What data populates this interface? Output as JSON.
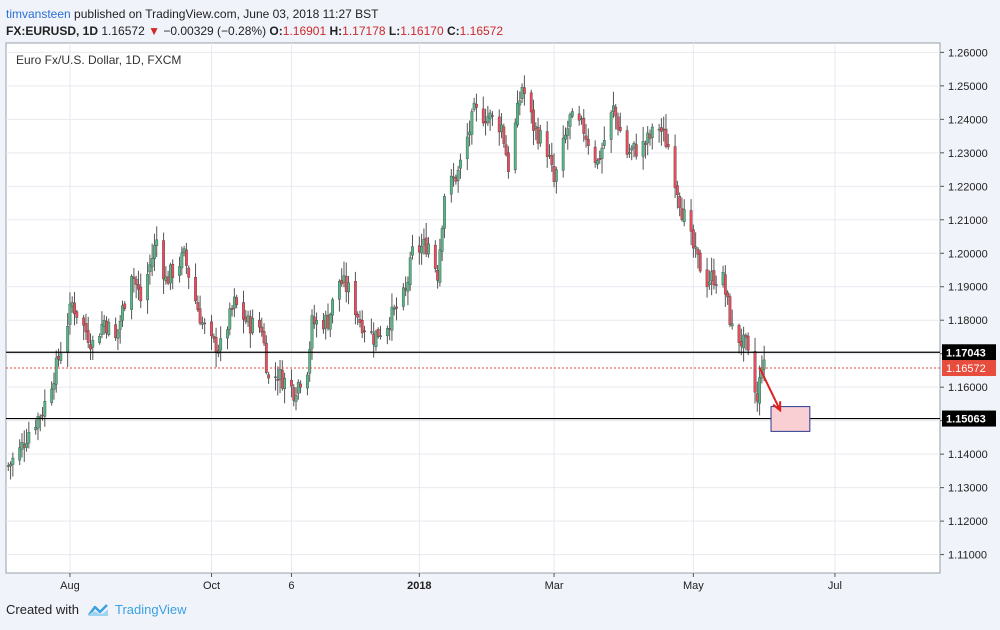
{
  "header": {
    "author": "timvansteen",
    "published_text": "published on TradingView.com, June 03, 2018 11:27 BST"
  },
  "symbol_line": {
    "symbol": "FX:EURUSD, 1D",
    "last": "1.16572",
    "change": "−0.00329 (−0.28%)",
    "o_label": "O:",
    "o_value": "1.16901",
    "h_label": "H:",
    "h_value": "1.17178",
    "l_label": "L:",
    "l_value": "1.16170",
    "c_label": "C:",
    "c_value": "1.16572",
    "down_arrow": "▼"
  },
  "footer": {
    "created_with": "Created with",
    "brand": "TradingView"
  },
  "colors": {
    "up": "#53b987",
    "down": "#eb4d5c",
    "wick": "#555555",
    "grid": "#e6e9ef",
    "hline": "#000000",
    "last_price": "#e74c3c",
    "target_box_fill": "#f9cfd4",
    "target_box_stroke": "#2a3a8f",
    "arrow": "#e02020"
  },
  "chart_data": {
    "type": "candlestick",
    "title": "Euro Fx/U.S. Dollar, 1D, FXCM",
    "y_axis_side": "right",
    "ylim": [
      1.1045,
      1.2628
    ],
    "y_ticks": [
      1.11,
      1.12,
      1.13,
      1.14,
      1.15,
      1.16,
      1.17,
      1.18,
      1.19,
      1.2,
      1.21,
      1.22,
      1.23,
      1.24,
      1.25,
      1.26
    ],
    "x_ticks": [
      {
        "label": "Aug",
        "date": "2017-08-01"
      },
      {
        "label": "Oct",
        "date": "2017-10-02"
      },
      {
        "label": "6",
        "date": "2017-11-06"
      },
      {
        "label": "2018",
        "date": "2018-01-01"
      },
      {
        "label": "Mar",
        "date": "2018-03-01"
      },
      {
        "label": "May",
        "date": "2018-05-01"
      },
      {
        "label": "Jul",
        "date": "2018-07-02"
      }
    ],
    "x_range": [
      "2017-07-04",
      "2018-08-17"
    ],
    "grid": true,
    "horizontal_lines": [
      {
        "value": 1.17043,
        "label": "1.17043"
      },
      {
        "value": 1.15063,
        "label": "1.15063"
      }
    ],
    "last_price": {
      "value": 1.16572,
      "label": "1.16572"
    },
    "target_box": {
      "x_start": "2018-06-04",
      "x_end": "2018-06-21",
      "y_low": 1.1468,
      "y_high": 1.1542
    },
    "projection_arrow": {
      "from": {
        "date": "2018-05-30",
        "value": 1.1658
      },
      "to": {
        "date": "2018-06-08",
        "value": 1.1531
      }
    },
    "path_anchors": [
      [
        "2017-07-05",
        1.1365
      ],
      [
        "2017-07-10",
        1.141
      ],
      [
        "2017-07-14",
        1.147
      ],
      [
        "2017-07-20",
        1.153
      ],
      [
        "2017-07-26",
        1.166
      ],
      [
        "2017-08-02",
        1.185
      ],
      [
        "2017-08-07",
        1.178
      ],
      [
        "2017-08-11",
        1.173
      ],
      [
        "2017-08-16",
        1.18
      ],
      [
        "2017-08-21",
        1.174
      ],
      [
        "2017-08-28",
        1.195
      ],
      [
        "2017-09-01",
        1.186
      ],
      [
        "2017-09-08",
        1.204
      ],
      [
        "2017-09-12",
        1.192
      ],
      [
        "2017-09-20",
        1.199
      ],
      [
        "2017-09-25",
        1.186
      ],
      [
        "2017-09-28",
        1.179
      ],
      [
        "2017-10-02",
        1.173
      ],
      [
        "2017-10-06",
        1.172
      ],
      [
        "2017-10-12",
        1.185
      ],
      [
        "2017-10-18",
        1.179
      ],
      [
        "2017-10-24",
        1.178
      ],
      [
        "2017-10-27",
        1.162
      ],
      [
        "2017-10-31",
        1.164
      ],
      [
        "2017-11-07",
        1.159
      ],
      [
        "2017-11-13",
        1.166
      ],
      [
        "2017-11-15",
        1.179
      ],
      [
        "2017-11-22",
        1.18
      ],
      [
        "2017-11-27",
        1.192
      ],
      [
        "2017-12-01",
        1.189
      ],
      [
        "2017-12-06",
        1.18
      ],
      [
        "2017-12-12",
        1.175
      ],
      [
        "2017-12-18",
        1.179
      ],
      [
        "2017-12-26",
        1.188
      ],
      [
        "2017-12-29",
        1.2
      ],
      [
        "2018-01-05",
        1.203
      ],
      [
        "2018-01-09",
        1.194
      ],
      [
        "2018-01-12",
        1.218
      ],
      [
        "2018-01-18",
        1.224
      ],
      [
        "2018-01-25",
        1.242
      ],
      [
        "2018-01-31",
        1.241
      ],
      [
        "2018-02-06",
        1.238
      ],
      [
        "2018-02-09",
        1.226
      ],
      [
        "2018-02-15",
        1.25
      ],
      [
        "2018-02-20",
        1.238
      ],
      [
        "2018-02-26",
        1.231
      ],
      [
        "2018-03-01",
        1.221
      ],
      [
        "2018-03-08",
        1.24
      ],
      [
        "2018-03-14",
        1.237
      ],
      [
        "2018-03-20",
        1.227
      ],
      [
        "2018-03-27",
        1.243
      ],
      [
        "2018-04-02",
        1.23
      ],
      [
        "2018-04-09",
        1.232
      ],
      [
        "2018-04-16",
        1.238
      ],
      [
        "2018-04-20",
        1.232
      ],
      [
        "2018-04-26",
        1.213
      ],
      [
        "2018-05-02",
        1.199
      ],
      [
        "2018-05-07",
        1.192
      ],
      [
        "2018-05-10",
        1.193
      ],
      [
        "2018-05-14",
        1.192
      ],
      [
        "2018-05-18",
        1.177
      ],
      [
        "2018-05-24",
        1.172
      ],
      [
        "2018-05-29",
        1.155
      ],
      [
        "2018-05-31",
        1.168
      ],
      [
        "2018-06-01",
        1.1657
      ]
    ]
  }
}
